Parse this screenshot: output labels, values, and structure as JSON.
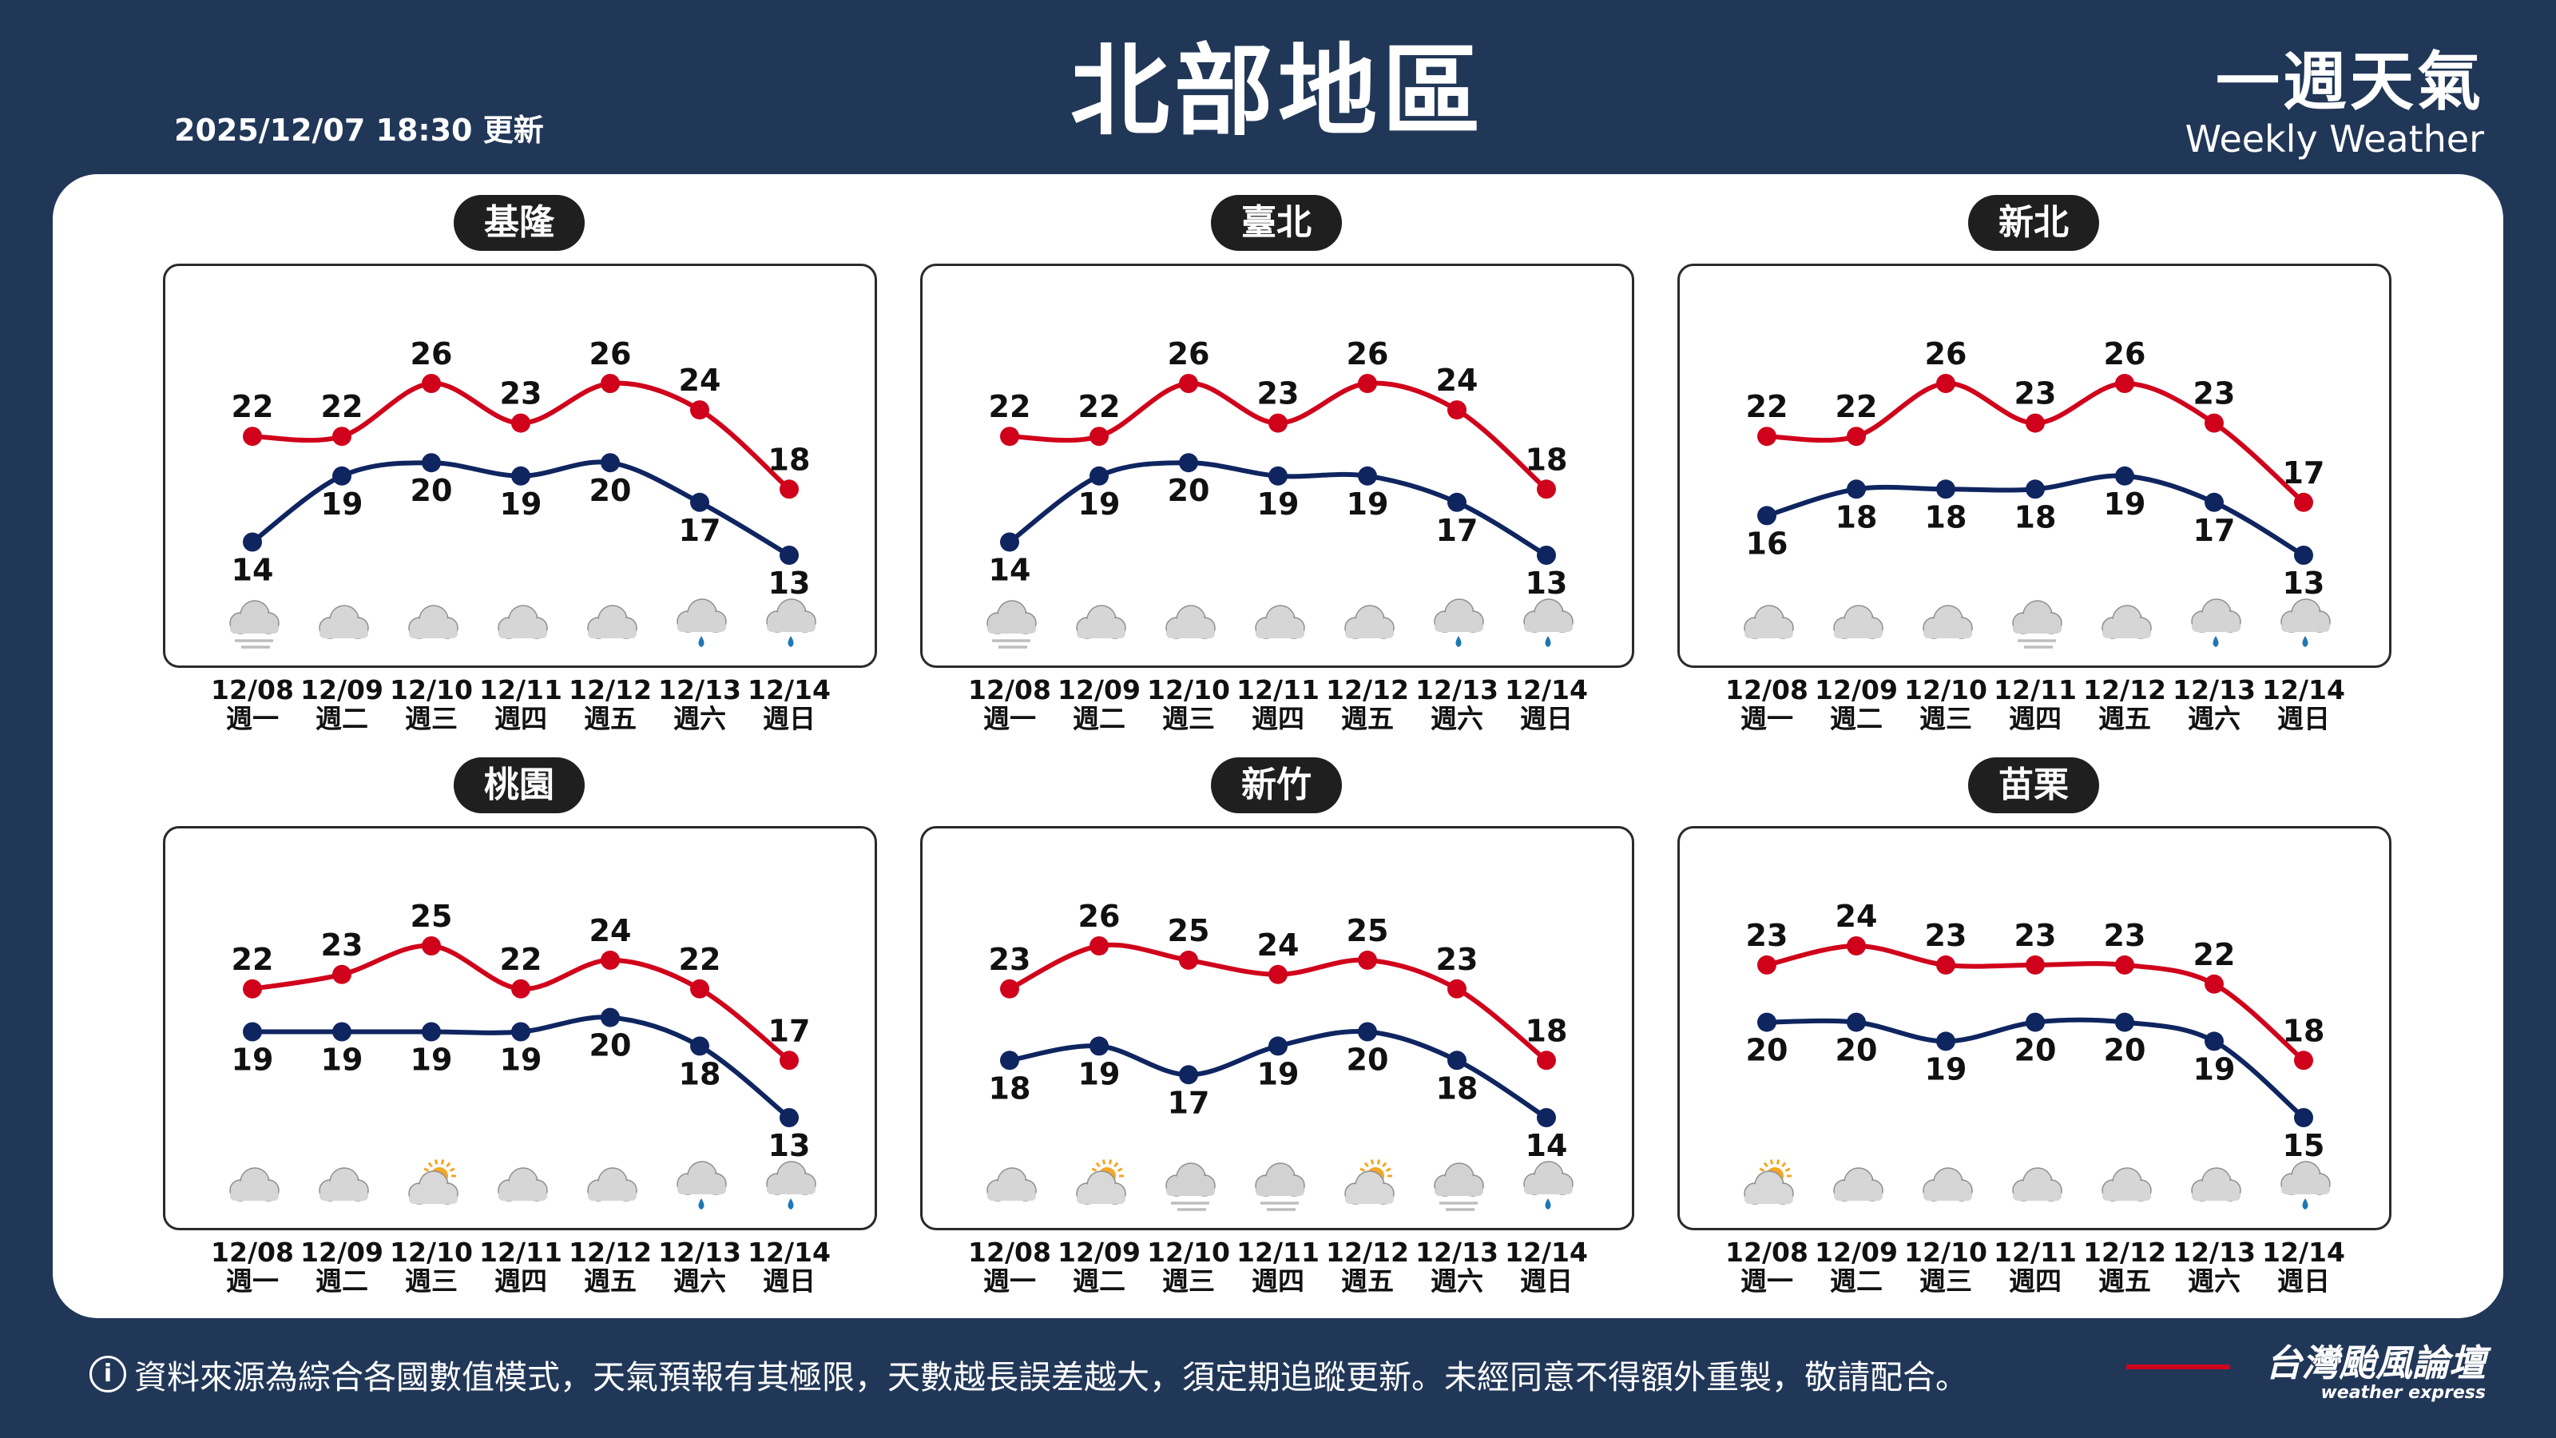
{
  "header": {
    "updated": "2025/12/07 18:30 更新",
    "title": "北部地區",
    "brand_zh": "一週天氣",
    "brand_en": "Weekly Weather"
  },
  "footer": {
    "info_icon": "i",
    "notice": "資料來源為綜合各國數值模式，天氣預報有其極限，天數越長誤差越大，須定期追蹤更新。未經同意不得額外重製，敬請配合。",
    "logo_zh": "台灣颱風論壇",
    "logo_en": "weather express"
  },
  "colors": {
    "high": "#d0021b",
    "low": "#0f2560",
    "background": "#213758"
  },
  "days": [
    {
      "date": "12/08",
      "weekday": "週一"
    },
    {
      "date": "12/09",
      "weekday": "週二"
    },
    {
      "date": "12/10",
      "weekday": "週三"
    },
    {
      "date": "12/11",
      "weekday": "週四"
    },
    {
      "date": "12/12",
      "weekday": "週五"
    },
    {
      "date": "12/13",
      "weekday": "週六"
    },
    {
      "date": "12/14",
      "weekday": "週日"
    }
  ],
  "chart_data": [
    {
      "type": "line",
      "title": "基隆",
      "categories": [
        "12/08",
        "12/09",
        "12/10",
        "12/11",
        "12/12",
        "12/13",
        "12/14"
      ],
      "series": [
        {
          "values": [
            22,
            22,
            26,
            23,
            26,
            24,
            18
          ]
        },
        {
          "values": [
            14,
            19,
            20,
            19,
            20,
            17,
            13
          ]
        }
      ],
      "icons": [
        "fog",
        "cloudy",
        "cloudy",
        "cloudy",
        "cloudy",
        "rain",
        "rain"
      ]
    },
    {
      "type": "line",
      "title": "臺北",
      "categories": [
        "12/08",
        "12/09",
        "12/10",
        "12/11",
        "12/12",
        "12/13",
        "12/14"
      ],
      "series": [
        {
          "values": [
            22,
            22,
            26,
            23,
            26,
            24,
            18
          ]
        },
        {
          "values": [
            14,
            19,
            20,
            19,
            19,
            17,
            13
          ]
        }
      ],
      "icons": [
        "fog",
        "cloudy",
        "cloudy",
        "cloudy",
        "cloudy",
        "rain",
        "rain"
      ]
    },
    {
      "type": "line",
      "title": "新北",
      "categories": [
        "12/08",
        "12/09",
        "12/10",
        "12/11",
        "12/12",
        "12/13",
        "12/14"
      ],
      "series": [
        {
          "values": [
            22,
            22,
            26,
            23,
            26,
            23,
            17
          ]
        },
        {
          "values": [
            16,
            18,
            18,
            18,
            19,
            17,
            13
          ]
        }
      ],
      "icons": [
        "cloudy",
        "cloudy",
        "cloudy",
        "fog",
        "cloudy",
        "rain",
        "rain"
      ]
    },
    {
      "type": "line",
      "title": "桃園",
      "categories": [
        "12/08",
        "12/09",
        "12/10",
        "12/11",
        "12/12",
        "12/13",
        "12/14"
      ],
      "series": [
        {
          "values": [
            22,
            23,
            25,
            22,
            24,
            22,
            17
          ]
        },
        {
          "values": [
            19,
            19,
            19,
            19,
            20,
            18,
            13
          ]
        }
      ],
      "icons": [
        "cloudy",
        "cloudy",
        "partly-sunny",
        "cloudy",
        "cloudy",
        "rain",
        "rain"
      ]
    },
    {
      "type": "line",
      "title": "新竹",
      "categories": [
        "12/08",
        "12/09",
        "12/10",
        "12/11",
        "12/12",
        "12/13",
        "12/14"
      ],
      "series": [
        {
          "values": [
            23,
            26,
            25,
            24,
            25,
            23,
            18
          ]
        },
        {
          "values": [
            18,
            19,
            17,
            19,
            20,
            18,
            14
          ]
        }
      ],
      "icons": [
        "cloudy",
        "partly-sunny",
        "fog",
        "fog",
        "partly-sunny",
        "fog",
        "rain"
      ]
    },
    {
      "type": "line",
      "title": "苗栗",
      "categories": [
        "12/08",
        "12/09",
        "12/10",
        "12/11",
        "12/12",
        "12/13",
        "12/14"
      ],
      "series": [
        {
          "values": [
            23,
            24,
            23,
            23,
            23,
            22,
            18
          ]
        },
        {
          "values": [
            20,
            20,
            19,
            20,
            20,
            19,
            15
          ]
        }
      ],
      "icons": [
        "partly-sunny",
        "cloudy",
        "cloudy",
        "cloudy",
        "cloudy",
        "cloudy",
        "rain"
      ]
    }
  ]
}
